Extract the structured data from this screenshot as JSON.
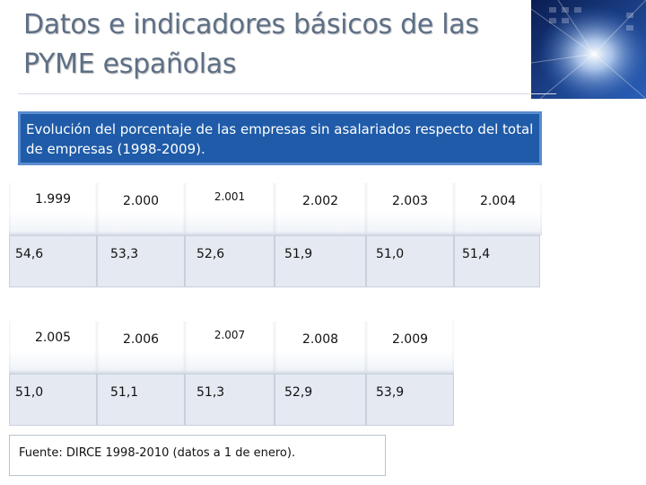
{
  "title": "Datos e indicadores básicos de las PYME españolas",
  "subtitle": "Evolución del porcentaje de las empresas sin asalariados respecto del total de empresas (1998-2009).",
  "table1": {
    "years": [
      "1.999",
      "2.000",
      "2.001",
      "2.002",
      "2.003",
      "2.004"
    ],
    "values": [
      "54,6",
      "53,3",
      "52,6",
      "51,9",
      "51,0",
      "51,4"
    ]
  },
  "table2": {
    "years": [
      "2.005",
      "2.006",
      "2.007",
      "2.008",
      "2.009"
    ],
    "values": [
      "51,0",
      "51,1",
      "51,3",
      "52,9",
      "53,9"
    ]
  },
  "source": "Fuente: DIRCE 1998-2010 (datos a 1 de enero).",
  "colors": {
    "subtitle_bg": "#1f5ba8",
    "title": "#5d6f86",
    "cell_bg": "#e5e9f1"
  }
}
